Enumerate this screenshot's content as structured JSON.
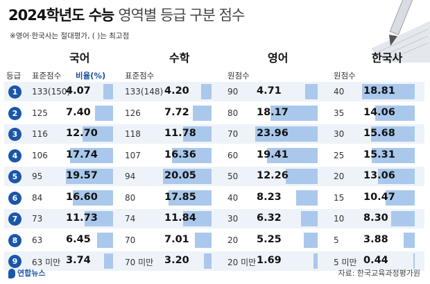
{
  "title": {
    "bold": "2024학년도 수능",
    "light": "영역별 등급 구분 점수"
  },
  "note": "※영어·한국사는 절대평가, ( )는 최고점",
  "headers": {
    "korean": "국어",
    "math": "수학",
    "english": "영어",
    "history": "한국사"
  },
  "subheaders": {
    "grade": "등급",
    "korean_std": "표준점수",
    "korean_pct": "비율(%)",
    "math_std": "표준점수",
    "english_raw": "원점수",
    "history_raw": "원점수"
  },
  "source": "자료: 한국교육과정평가원",
  "logo": "연합뉴스",
  "colors": {
    "badge": "#1b56a8",
    "bar": "#a9c8ec",
    "row_alt": "#eef3f9"
  },
  "chart_data": {
    "type": "table",
    "title": "2024학년도 수능 영역별 등급 구분 점수",
    "grades": [
      "1",
      "2",
      "3",
      "4",
      "5",
      "6",
      "7",
      "8",
      "9"
    ],
    "korean": {
      "std": [
        "133(150)",
        "125",
        "116",
        "106",
        "95",
        "84",
        "73",
        "63",
        "63 미만"
      ],
      "pct": [
        4.07,
        7.4,
        12.7,
        17.74,
        19.57,
        16.6,
        11.73,
        6.45,
        3.74
      ],
      "pct_text": [
        "4.07",
        "7.40",
        "12.70",
        "17.74",
        "19.57",
        "16.60",
        "11.73",
        "6.45",
        "3.74"
      ]
    },
    "math": {
      "std": [
        "133(148)",
        "126",
        "118",
        "107",
        "94",
        "80",
        "74",
        "70",
        "70 미만"
      ],
      "pct": [
        4.2,
        7.72,
        11.78,
        16.36,
        20.05,
        17.85,
        11.84,
        7.01,
        3.2
      ],
      "pct_text": [
        "4.20",
        "7.72",
        "11.78",
        "16.36",
        "20.05",
        "17.85",
        "11.84",
        "7.01",
        "3.20"
      ]
    },
    "english": {
      "raw": [
        "90",
        "80",
        "70",
        "60",
        "50",
        "40",
        "30",
        "20",
        "20 미만"
      ],
      "pct": [
        4.71,
        18.17,
        23.96,
        19.41,
        12.26,
        8.23,
        6.32,
        5.25,
        1.69
      ],
      "pct_text": [
        "4.71",
        "18.17",
        "23.96",
        "19.41",
        "12.26",
        "8.23",
        "6.32",
        "5.25",
        "1.69"
      ]
    },
    "history": {
      "raw": [
        "40",
        "35",
        "30",
        "25",
        "20",
        "15",
        "10",
        "5",
        "5 미만"
      ],
      "pct": [
        18.81,
        14.06,
        15.68,
        15.31,
        13.06,
        10.47,
        8.3,
        3.88,
        0.44
      ],
      "pct_text": [
        "18.81",
        "14.06",
        "15.68",
        "15.31",
        "13.06",
        "10.47",
        "8.30",
        "3.88",
        "0.44"
      ]
    }
  }
}
